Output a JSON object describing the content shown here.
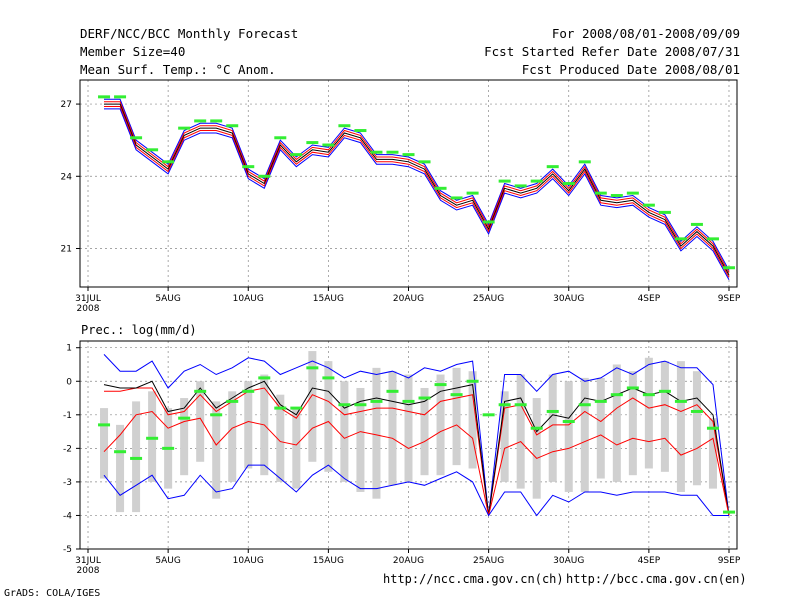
{
  "header": {
    "title": "DERF/NCC/BCC Monthly Forecast",
    "member": "Member Size=40",
    "variable": "Mean Surf. Temp.: °C Anom.",
    "period": "For 2008/08/01-2008/09/09",
    "refer": "Fcst Started Refer Date 2008/07/31",
    "produced": "Fcst Produced Date 2008/08/01"
  },
  "footer": {
    "url_ch": "http://ncc.cma.gov.cn(ch)",
    "url_en": "http://bcc.cma.gov.cn(en)",
    "credit": "GrADS: COLA/IGES"
  },
  "colors": {
    "blue": "#0000ff",
    "red": "#ff0000",
    "black": "#000000",
    "green": "#33ee33",
    "box": "#d0d0d0",
    "grid": "#888888"
  },
  "chart_data": [
    {
      "type": "line",
      "title": "Mean Surf. Temp.: °C Anom.",
      "x_tick_days": [
        0,
        5,
        10,
        15,
        20,
        25,
        30,
        35,
        40
      ],
      "x_ticks": [
        "31JUL",
        "5AUG",
        "10AUG",
        "15AUG",
        "20AUG",
        "25AUG",
        "30AUG",
        "4SEP",
        "9SEP"
      ],
      "x_year_label": "2008",
      "ylim": [
        19.4,
        28.0
      ],
      "y_ticks": [
        21,
        24,
        27
      ],
      "days": [
        1,
        2,
        3,
        4,
        5,
        6,
        7,
        8,
        9,
        10,
        11,
        12,
        13,
        14,
        15,
        16,
        17,
        18,
        19,
        20,
        21,
        22,
        23,
        24,
        25,
        26,
        27,
        28,
        29,
        30,
        31,
        32,
        33,
        34,
        35,
        36,
        37,
        38,
        39,
        40
      ],
      "series": [
        {
          "name": "max",
          "color": "blue",
          "values": [
            27.2,
            27.2,
            25.5,
            25.0,
            24.5,
            25.9,
            26.2,
            26.2,
            26.0,
            24.3,
            23.9,
            25.5,
            24.8,
            25.3,
            25.2,
            26.0,
            25.8,
            24.9,
            24.9,
            24.8,
            24.5,
            23.4,
            23.0,
            23.2,
            22.0,
            23.7,
            23.5,
            23.7,
            24.3,
            23.6,
            24.5,
            23.2,
            23.1,
            23.2,
            22.7,
            22.4,
            21.3,
            21.9,
            21.3,
            20.1
          ]
        },
        {
          "name": "upper",
          "color": "red",
          "values": [
            27.1,
            27.1,
            25.4,
            24.9,
            24.4,
            25.8,
            26.1,
            26.1,
            25.9,
            24.2,
            23.8,
            25.4,
            24.7,
            25.2,
            25.1,
            25.9,
            25.7,
            24.8,
            24.8,
            24.7,
            24.4,
            23.3,
            22.9,
            23.1,
            21.9,
            23.6,
            23.4,
            23.6,
            24.2,
            23.5,
            24.4,
            23.1,
            23.0,
            23.1,
            22.6,
            22.3,
            21.2,
            21.8,
            21.2,
            20.0
          ]
        },
        {
          "name": "mean",
          "color": "black",
          "values": [
            27.0,
            27.0,
            25.3,
            24.8,
            24.3,
            25.7,
            26.0,
            26.0,
            25.8,
            24.1,
            23.7,
            25.3,
            24.6,
            25.1,
            25.0,
            25.8,
            25.6,
            24.7,
            24.7,
            24.6,
            24.3,
            23.2,
            22.8,
            23.0,
            21.8,
            23.5,
            23.3,
            23.5,
            24.1,
            23.4,
            24.3,
            23.0,
            22.9,
            23.0,
            22.5,
            22.2,
            21.1,
            21.7,
            21.1,
            19.9
          ]
        },
        {
          "name": "lower",
          "color": "red",
          "values": [
            26.9,
            26.9,
            25.2,
            24.7,
            24.2,
            25.6,
            25.9,
            25.9,
            25.7,
            24.0,
            23.6,
            25.2,
            24.5,
            25.0,
            24.9,
            25.7,
            25.5,
            24.6,
            24.6,
            24.5,
            24.2,
            23.1,
            22.7,
            22.9,
            21.7,
            23.4,
            23.2,
            23.4,
            24.0,
            23.3,
            24.2,
            22.9,
            22.8,
            22.9,
            22.4,
            22.1,
            21.0,
            21.6,
            21.0,
            19.8
          ]
        },
        {
          "name": "min",
          "color": "blue",
          "values": [
            26.8,
            26.8,
            25.1,
            24.6,
            24.1,
            25.5,
            25.8,
            25.8,
            25.6,
            23.9,
            23.5,
            25.1,
            24.4,
            24.9,
            24.8,
            25.6,
            25.4,
            24.5,
            24.5,
            24.4,
            24.1,
            23.0,
            22.6,
            22.8,
            21.6,
            23.3,
            23.1,
            23.3,
            23.9,
            23.2,
            24.1,
            22.8,
            22.7,
            22.8,
            22.3,
            22.0,
            20.9,
            21.5,
            20.9,
            19.7
          ]
        }
      ],
      "markers": {
        "name": "observed/reference",
        "color": "green",
        "values": [
          27.3,
          27.3,
          25.6,
          25.1,
          24.6,
          26.0,
          26.3,
          26.3,
          26.1,
          24.4,
          24.0,
          25.6,
          24.9,
          25.4,
          25.3,
          26.1,
          25.9,
          25.0,
          25.0,
          24.9,
          24.6,
          23.5,
          23.1,
          23.3,
          22.1,
          23.8,
          23.6,
          23.8,
          24.4,
          23.7,
          24.6,
          23.3,
          23.2,
          23.3,
          22.8,
          22.5,
          21.4,
          22.0,
          21.4,
          20.2
        ]
      }
    },
    {
      "type": "line",
      "title": "Prec.: log(mm/d)",
      "x_tick_days": [
        0,
        5,
        10,
        15,
        20,
        25,
        30,
        35,
        40
      ],
      "x_ticks": [
        "31JUL",
        "5AUG",
        "10AUG",
        "15AUG",
        "20AUG",
        "25AUG",
        "30AUG",
        "4SEP",
        "9SEP"
      ],
      "x_year_label": "2008",
      "ylim": [
        -5,
        1.2
      ],
      "y_ticks": [
        -5,
        -4,
        -3,
        -2,
        -1,
        0,
        1
      ],
      "days": [
        1,
        2,
        3,
        4,
        5,
        6,
        7,
        8,
        9,
        10,
        11,
        12,
        13,
        14,
        15,
        16,
        17,
        18,
        19,
        20,
        21,
        22,
        23,
        24,
        25,
        26,
        27,
        28,
        29,
        30,
        31,
        32,
        33,
        34,
        35,
        36,
        37,
        38,
        39,
        40
      ],
      "series": [
        {
          "name": "max",
          "color": "blue",
          "values": [
            0.8,
            0.3,
            0.3,
            0.6,
            -0.2,
            0.3,
            0.5,
            0.2,
            0.4,
            0.7,
            0.6,
            0.2,
            0.4,
            0.6,
            0.4,
            0.1,
            0.3,
            0.2,
            0.3,
            0.1,
            0.4,
            0.3,
            0.5,
            0.6,
            -4.0,
            0.2,
            0.2,
            -0.3,
            0.2,
            0.3,
            0.0,
            0.1,
            0.4,
            0.2,
            0.5,
            0.6,
            0.4,
            0.4,
            -0.1,
            -4.0
          ]
        },
        {
          "name": "upper",
          "color": "red",
          "values": [
            -0.3,
            -0.3,
            -0.2,
            -0.2,
            -1.0,
            -0.9,
            -0.4,
            -0.9,
            -0.6,
            -0.3,
            -0.2,
            -0.8,
            -1.1,
            -0.4,
            -0.6,
            -1.0,
            -0.9,
            -0.8,
            -0.8,
            -0.9,
            -1.0,
            -0.6,
            -0.5,
            -0.4,
            -4.0,
            -0.8,
            -0.7,
            -1.6,
            -1.3,
            -1.3,
            -0.9,
            -1.2,
            -0.8,
            -0.5,
            -0.8,
            -0.7,
            -0.9,
            -0.7,
            -1.2,
            -4.0
          ]
        },
        {
          "name": "mean",
          "color": "black",
          "values": [
            -0.1,
            -0.2,
            -0.2,
            0.0,
            -0.9,
            -0.8,
            -0.2,
            -0.8,
            -0.5,
            -0.2,
            0.0,
            -0.7,
            -1.0,
            -0.2,
            -0.3,
            -0.8,
            -0.6,
            -0.5,
            -0.6,
            -0.7,
            -0.6,
            -0.3,
            -0.2,
            -0.1,
            -4.0,
            -0.6,
            -0.5,
            -1.5,
            -1.0,
            -1.1,
            -0.5,
            -0.6,
            -0.4,
            -0.2,
            -0.4,
            -0.3,
            -0.6,
            -0.5,
            -1.0,
            -4.0
          ]
        },
        {
          "name": "lower",
          "color": "red",
          "values": [
            -2.1,
            -1.6,
            -1.0,
            -0.9,
            -1.4,
            -1.2,
            -1.1,
            -1.9,
            -1.4,
            -1.2,
            -1.3,
            -1.8,
            -1.9,
            -1.4,
            -1.2,
            -1.7,
            -1.5,
            -1.6,
            -1.7,
            -2.0,
            -1.8,
            -1.5,
            -1.3,
            -1.7,
            -4.0,
            -2.0,
            -1.8,
            -2.3,
            -2.1,
            -2.0,
            -1.8,
            -1.6,
            -1.9,
            -1.7,
            -1.8,
            -1.7,
            -2.2,
            -2.0,
            -1.7,
            -4.0
          ]
        },
        {
          "name": "min",
          "color": "blue",
          "values": [
            -2.8,
            -3.4,
            -3.1,
            -2.8,
            -3.5,
            -3.4,
            -2.8,
            -3.3,
            -3.2,
            -2.5,
            -2.5,
            -2.9,
            -3.3,
            -2.8,
            -2.5,
            -2.9,
            -3.2,
            -3.2,
            -3.1,
            -3.0,
            -3.1,
            -2.9,
            -2.7,
            -3.0,
            -4.0,
            -3.3,
            -3.3,
            -4.0,
            -3.4,
            -3.6,
            -3.3,
            -3.3,
            -3.4,
            -3.3,
            -3.3,
            -3.3,
            -3.4,
            -3.4,
            -4.0,
            -4.0
          ]
        }
      ],
      "boxes": {
        "name": "spread",
        "color": "box",
        "low": [
          -2.9,
          -3.9,
          -3.9,
          -3.0,
          -3.2,
          -2.8,
          -2.4,
          -3.5,
          -3.0,
          -2.6,
          -2.8,
          -3.0,
          -3.2,
          -2.4,
          -2.7,
          -3.0,
          -3.3,
          -3.5,
          -3.1,
          -3.0,
          -2.8,
          -2.8,
          -2.5,
          -2.6,
          -4.0,
          -3.0,
          -3.2,
          -3.5,
          -3.0,
          -3.3,
          -3.3,
          -2.9,
          -3.0,
          -2.8,
          -2.6,
          -2.7,
          -3.3,
          -3.1,
          -3.2,
          -4.0
        ],
        "high": [
          -0.8,
          -1.3,
          -0.6,
          -0.3,
          -0.8,
          -0.5,
          0.0,
          -0.6,
          -0.3,
          0.0,
          0.2,
          -0.4,
          -0.8,
          0.9,
          0.6,
          0.0,
          -0.2,
          0.4,
          0.3,
          0.2,
          -0.2,
          0.2,
          0.4,
          0.3,
          -4.0,
          -0.3,
          0.2,
          -0.5,
          0.2,
          0.0,
          0.1,
          0.1,
          0.5,
          0.3,
          0.7,
          0.6,
          0.6,
          0.3,
          -1.1,
          -4.0
        ]
      },
      "markers": {
        "name": "observed/reference",
        "color": "green",
        "values": [
          -1.3,
          -2.1,
          -2.3,
          -1.7,
          -2.0,
          -1.1,
          -0.3,
          -1.0,
          -0.6,
          -0.3,
          0.1,
          -0.8,
          -0.8,
          0.4,
          0.1,
          -0.7,
          -0.7,
          -0.6,
          -0.3,
          -0.6,
          -0.5,
          -0.1,
          -0.4,
          0.0,
          -1.0,
          -0.7,
          -0.7,
          -1.4,
          -0.9,
          -1.2,
          -0.7,
          -0.6,
          -0.4,
          -0.2,
          -0.4,
          -0.3,
          -0.6,
          -0.9,
          -1.4,
          -3.9
        ]
      }
    }
  ]
}
